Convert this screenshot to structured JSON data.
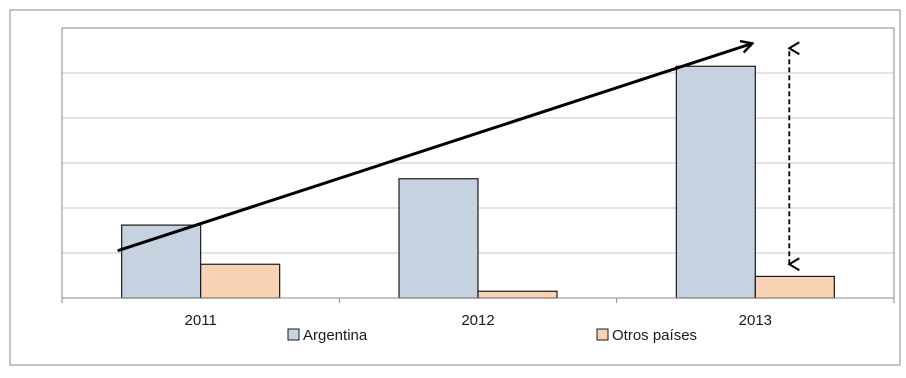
{
  "chart_data": {
    "type": "bar",
    "categories": [
      "2011",
      "2012",
      "2013"
    ],
    "series": [
      {
        "name": "Argentina",
        "values": [
          1.62,
          2.65,
          5.15
        ],
        "color": "#c6d2e0"
      },
      {
        "name": "Otros países",
        "values": [
          0.75,
          0.15,
          0.48
        ],
        "color": "#f7d2b3"
      }
    ],
    "ylim": [
      0,
      6
    ],
    "y_gridlines": [
      1,
      2,
      3,
      4,
      5,
      6
    ],
    "y_tick_labels_shown": false,
    "grid": true,
    "legend": {
      "position": "bottom"
    },
    "annotations": [
      {
        "kind": "trend-arrow",
        "from": {
          "x": "2011",
          "y": 1.05
        },
        "to": {
          "x": "2013",
          "y": 5.65
        }
      },
      {
        "kind": "double-headed-dashed-arrow",
        "x": "2013",
        "y_range": [
          0.75,
          5.55
        ]
      }
    ],
    "colors": {
      "gridline": "#c8c8c8",
      "bar_outline": "#1a1a1a",
      "arrow": "#000000"
    }
  }
}
